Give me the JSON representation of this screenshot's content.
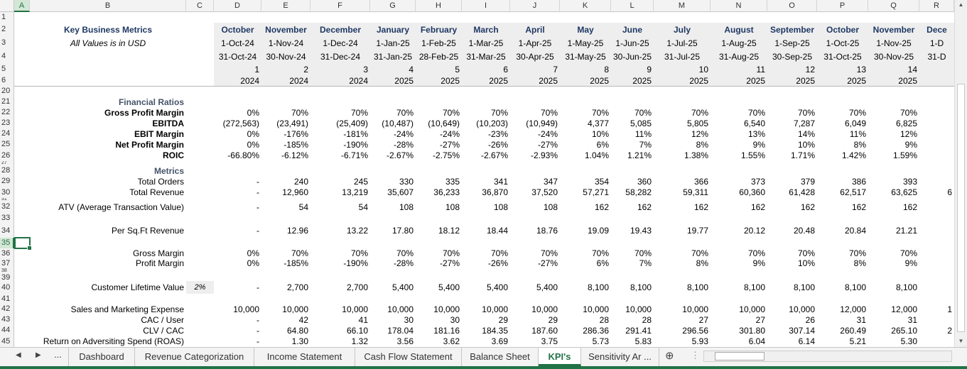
{
  "column_headers": [
    "A",
    "B",
    "C",
    "D",
    "E",
    "F",
    "G",
    "H",
    "I",
    "J",
    "K",
    "L",
    "M",
    "N",
    "O",
    "P",
    "Q",
    "R"
  ],
  "row_headers": [
    "1",
    "2",
    "3",
    "4",
    "5",
    "6",
    "20",
    "21",
    "22",
    "23",
    "24",
    "25",
    "26",
    "27",
    "28",
    "29",
    "30",
    "31",
    "32",
    "33",
    "34",
    "35",
    "36",
    "37",
    "38",
    "39",
    "40",
    "41",
    "42",
    "43",
    "44",
    "45"
  ],
  "selected_column": "A",
  "selected_row": "35",
  "header": {
    "title": "Key Business Metrics",
    "subtitle": "All Values is in USD",
    "months": [
      "October",
      "November",
      "December",
      "January",
      "February",
      "March",
      "April",
      "May",
      "June",
      "July",
      "August",
      "September",
      "October",
      "November",
      "Dece"
    ],
    "start_dates": [
      "1-Oct-24",
      "1-Nov-24",
      "1-Dec-24",
      "1-Jan-25",
      "1-Feb-25",
      "1-Mar-25",
      "1-Apr-25",
      "1-May-25",
      "1-Jun-25",
      "1-Jul-25",
      "1-Aug-25",
      "1-Sep-25",
      "1-Oct-25",
      "1-Nov-25",
      "1-D"
    ],
    "end_dates": [
      "31-Oct-24",
      "30-Nov-24",
      "31-Dec-24",
      "31-Jan-25",
      "28-Feb-25",
      "31-Mar-25",
      "30-Apr-25",
      "31-May-25",
      "30-Jun-25",
      "31-Jul-25",
      "31-Aug-25",
      "30-Sep-25",
      "31-Oct-25",
      "30-Nov-25",
      "31-D"
    ],
    "period_numbers": [
      "1",
      "2",
      "3",
      "4",
      "5",
      "6",
      "7",
      "8",
      "9",
      "10",
      "11",
      "12",
      "13",
      "14",
      ""
    ],
    "years": [
      "2024",
      "2024",
      "2024",
      "2025",
      "2025",
      "2025",
      "2025",
      "2025",
      "2025",
      "2025",
      "2025",
      "2025",
      "2025",
      "2025",
      ""
    ]
  },
  "rows": [
    {
      "row": "21",
      "label": "Financial Ratios",
      "style": "sect",
      "values": []
    },
    {
      "row": "22",
      "label": "Gross Profit Margin",
      "style": "bold",
      "values": [
        "0%",
        "70%",
        "70%",
        "70%",
        "70%",
        "70%",
        "70%",
        "70%",
        "70%",
        "70%",
        "70%",
        "70%",
        "70%",
        "70%",
        ""
      ]
    },
    {
      "row": "23",
      "label": "EBITDA",
      "style": "bold",
      "values": [
        "(272,563)",
        "(23,491)",
        "(25,409)",
        "(10,487)",
        "(10,649)",
        "(10,203)",
        "(10,949)",
        "4,377",
        "5,085",
        "5,805",
        "6,540",
        "7,287",
        "6,049",
        "6,825",
        ""
      ]
    },
    {
      "row": "24",
      "label": "EBIT Margin",
      "style": "bold",
      "values": [
        "0%",
        "-176%",
        "-181%",
        "-24%",
        "-24%",
        "-23%",
        "-24%",
        "10%",
        "11%",
        "12%",
        "13%",
        "14%",
        "11%",
        "12%",
        ""
      ]
    },
    {
      "row": "25",
      "label": "Net Profit Margin",
      "style": "bold",
      "values": [
        "0%",
        "-185%",
        "-190%",
        "-28%",
        "-27%",
        "-26%",
        "-27%",
        "6%",
        "7%",
        "8%",
        "9%",
        "10%",
        "8%",
        "9%",
        ""
      ]
    },
    {
      "row": "26",
      "label": "ROIC",
      "style": "bold",
      "values": [
        "-66.80%",
        "-6.12%",
        "-6.71%",
        "-2.67%",
        "-2.75%",
        "-2.67%",
        "-2.93%",
        "1.04%",
        "1.21%",
        "1.38%",
        "1.55%",
        "1.71%",
        "1.42%",
        "1.59%",
        ""
      ]
    },
    {
      "row": "28",
      "label": "Metrics",
      "style": "sect",
      "values": []
    },
    {
      "row": "29",
      "label": "Total Orders",
      "style": "",
      "values": [
        "-",
        "240",
        "245",
        "330",
        "335",
        "341",
        "347",
        "354",
        "360",
        "366",
        "373",
        "379",
        "386",
        "393",
        ""
      ]
    },
    {
      "row": "30",
      "label": "Total Revenue",
      "style": "",
      "values": [
        "-",
        "12,960",
        "13,219",
        "35,607",
        "36,233",
        "36,870",
        "37,520",
        "57,271",
        "58,282",
        "59,311",
        "60,360",
        "61,428",
        "62,517",
        "63,625",
        "6"
      ]
    },
    {
      "row": "32",
      "label": "ATV (Average Transaction Value)",
      "style": "",
      "values": [
        "-",
        "54",
        "54",
        "108",
        "108",
        "108",
        "108",
        "162",
        "162",
        "162",
        "162",
        "162",
        "162",
        "162",
        ""
      ]
    },
    {
      "row": "34",
      "label": "Per Sq.Ft Revenue",
      "style": "",
      "values": [
        "-",
        "12.96",
        "13.22",
        "17.80",
        "18.12",
        "18.44",
        "18.76",
        "19.09",
        "19.43",
        "19.77",
        "20.12",
        "20.48",
        "20.84",
        "21.21",
        ""
      ]
    },
    {
      "row": "36",
      "label": "Gross Margin",
      "style": "",
      "values": [
        "0%",
        "70%",
        "70%",
        "70%",
        "70%",
        "70%",
        "70%",
        "70%",
        "70%",
        "70%",
        "70%",
        "70%",
        "70%",
        "70%",
        ""
      ]
    },
    {
      "row": "37",
      "label": "Profit Margin",
      "style": "",
      "values": [
        "0%",
        "-185%",
        "-190%",
        "-28%",
        "-27%",
        "-26%",
        "-27%",
        "6%",
        "7%",
        "8%",
        "9%",
        "10%",
        "8%",
        "9%",
        ""
      ]
    },
    {
      "row": "40",
      "label": "Customer Lifetime Value",
      "style": "",
      "c_value": "2%",
      "values": [
        "-",
        "2,700",
        "2,700",
        "5,400",
        "5,400",
        "5,400",
        "5,400",
        "8,100",
        "8,100",
        "8,100",
        "8,100",
        "8,100",
        "8,100",
        "8,100",
        ""
      ]
    },
    {
      "row": "42",
      "label": "Sales and Marketing Expense",
      "style": "",
      "values": [
        "10,000",
        "10,000",
        "10,000",
        "10,000",
        "10,000",
        "10,000",
        "10,000",
        "10,000",
        "10,000",
        "10,000",
        "10,000",
        "10,000",
        "12,000",
        "12,000",
        "1"
      ]
    },
    {
      "row": "43",
      "label": "CAC / User",
      "style": "",
      "values": [
        "-",
        "42",
        "41",
        "30",
        "30",
        "29",
        "29",
        "28",
        "28",
        "27",
        "27",
        "26",
        "31",
        "31",
        ""
      ]
    },
    {
      "row": "44",
      "label": "CLV / CAC",
      "style": "",
      "values": [
        "-",
        "64.80",
        "66.10",
        "178.04",
        "181.16",
        "184.35",
        "187.60",
        "286.36",
        "291.41",
        "296.56",
        "301.80",
        "307.14",
        "260.49",
        "265.10",
        "2"
      ]
    },
    {
      "row": "45",
      "label": "Return on Adversiting  Spend (ROAS)",
      "style": "",
      "values": [
        "-",
        "1.30",
        "1.32",
        "3.56",
        "3.62",
        "3.69",
        "3.75",
        "5.73",
        "5.83",
        "5.93",
        "6.04",
        "6.14",
        "5.21",
        "5.30",
        ""
      ]
    }
  ],
  "tabs": [
    "Dashboard",
    "Revenue Categorization",
    "Income Statement",
    "Cash Flow Statement",
    "Balance Sheet",
    "KPI's",
    "Sensitivity Ar ..."
  ],
  "active_tab": "KPI's",
  "tab_nav": {
    "prev": "◀",
    "next": "▶",
    "more": "...",
    "add": "⊕",
    "menu": "⋮"
  },
  "colors": {
    "accent": "#217346",
    "section_text": "#44546a",
    "month_text": "#1f3864"
  }
}
